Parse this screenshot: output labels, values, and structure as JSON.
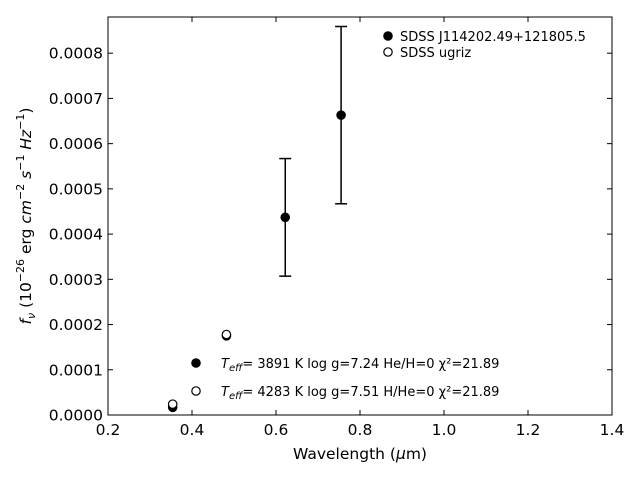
{
  "chart_data": {
    "type": "scatter",
    "xlabel": "Wavelength (μm)",
    "ylabel": "f_ν (10^-26 erg cm^-2 s^-1 Hz^-1)",
    "xlim": [
      0.2,
      1.4
    ],
    "ylim": [
      0.0,
      0.00088
    ],
    "xticks": [
      "0.2",
      "0.4",
      "0.6",
      "0.8",
      "1.0",
      "1.2",
      "1.4"
    ],
    "yticks": [
      "0.0000",
      "0.0001",
      "0.0002",
      "0.0003",
      "0.0004",
      "0.0005",
      "0.0006",
      "0.0007",
      "0.0008"
    ],
    "grid": false,
    "legend_position": "top-right",
    "series": [
      {
        "name": "SDSS J114202.49+121805.5",
        "marker": "filled-circle",
        "x": [
          0.354,
          0.482,
          0.622,
          0.755
        ],
        "y": [
          1.7e-05,
          0.000175,
          0.000437,
          0.000663
        ],
        "yerr": [
          null,
          null,
          0.00013,
          0.000196
        ]
      },
      {
        "name": "SDSS ugriz",
        "marker": "open-circle",
        "x": [
          0.354,
          0.482
        ],
        "y": [
          2.4e-05,
          0.000178
        ]
      }
    ],
    "annotations": [
      {
        "marker": "filled-circle",
        "text": "=  3891 K  log g=7.24  He/H=0  χ²=21.89"
      },
      {
        "marker": "open-circle",
        "text": "=  4283 K  log g=7.51  H/He=0  χ²=21.89"
      }
    ]
  }
}
